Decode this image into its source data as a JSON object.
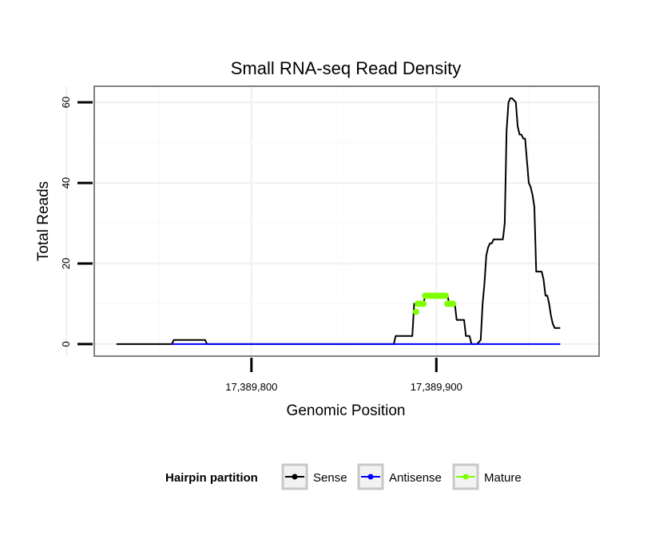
{
  "chart_data": {
    "type": "line",
    "title": "Small RNA-seq Read Density",
    "xlabel": "Genomic Position",
    "ylabel": "Total Reads",
    "xlim": [
      17389715,
      17389988
    ],
    "ylim": [
      -3,
      64
    ],
    "x_ticks": [
      17389800,
      17389900
    ],
    "x_tick_labels": [
      "17,389,800",
      "17,389,900"
    ],
    "y_ticks": [
      0,
      20,
      40,
      60
    ],
    "y_tick_labels": [
      "0",
      "20",
      "40",
      "60"
    ],
    "grid": true,
    "legend": {
      "title": "Hairpin partition",
      "position": "bottom",
      "entries": [
        {
          "name": "Sense",
          "color": "#000000"
        },
        {
          "name": "Antisense",
          "color": "#0000ff"
        },
        {
          "name": "Mature",
          "color": "#7fff00"
        }
      ]
    },
    "series": [
      {
        "name": "Sense",
        "color": "#000000",
        "x": [
          17389727,
          17389757,
          17389758,
          17389775,
          17389776,
          17389877,
          17389878,
          17389887,
          17389888,
          17389893,
          17389894,
          17389897,
          17389898,
          17389906,
          17389907,
          17389910,
          17389911,
          17389915,
          17389916,
          17389918,
          17389919,
          17389922,
          17389924,
          17389925,
          17389926,
          17389927,
          17389928,
          17389929,
          17389930,
          17389931,
          17389932,
          17389933,
          17389936,
          17389937,
          17389938,
          17389939,
          17389940,
          17389941,
          17389943,
          17389944,
          17389945,
          17389946,
          17389947,
          17389948,
          17389950,
          17389951,
          17389952,
          17389953,
          17389954,
          17389955,
          17389956,
          17389957,
          17389958,
          17389959,
          17389960,
          17389961,
          17389962,
          17389963,
          17389964,
          17389965,
          17389966,
          17389967
        ],
        "values": [
          0,
          0,
          1,
          1,
          0,
          0,
          2,
          2,
          10,
          10,
          12,
          12,
          12,
          12,
          10,
          10,
          6,
          6,
          2,
          2,
          0,
          0,
          1,
          10,
          15,
          22,
          24,
          25,
          25,
          26,
          26,
          26,
          26,
          30,
          53,
          60,
          61,
          61,
          60,
          54,
          52,
          52,
          51,
          51,
          40,
          39,
          37,
          34,
          18,
          18,
          18,
          18,
          16,
          12,
          12,
          10,
          7,
          5,
          4,
          4,
          4,
          4
        ]
      },
      {
        "name": "Antisense",
        "color": "#0000ff",
        "x": [
          17389757,
          17389967
        ],
        "values": [
          0,
          0
        ]
      },
      {
        "name": "Mature",
        "color": "#7fff00",
        "x": [
          17389889,
          17389890,
          17389891,
          17389892,
          17389893,
          17389894,
          17389895,
          17389896,
          17389897,
          17389898,
          17389899,
          17389900,
          17389901,
          17389902,
          17389903,
          17389904,
          17389905,
          17389906,
          17389907,
          17389908,
          17389909
        ],
        "values": [
          8,
          10,
          10,
          10,
          10,
          12,
          12,
          12,
          12,
          12,
          12,
          12,
          12,
          12,
          12,
          12,
          12,
          10,
          10,
          10,
          10
        ]
      }
    ]
  }
}
